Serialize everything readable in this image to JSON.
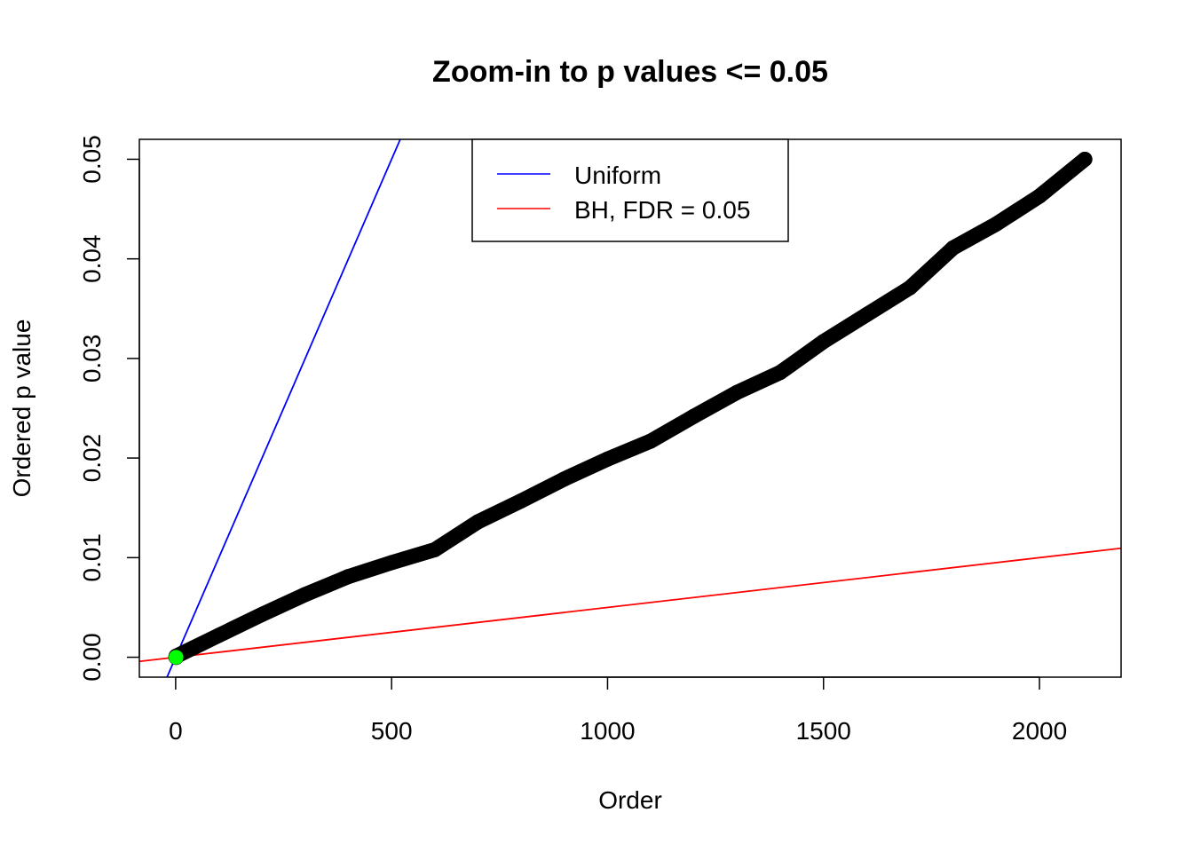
{
  "chart_data": {
    "type": "scatter",
    "title": "Zoom-in to p values <= 0.05",
    "xlabel": "Order",
    "ylabel": "Ordered p value",
    "xlim": [
      -84,
      2189
    ],
    "ylim": [
      -0.002,
      0.052
    ],
    "xticks": [
      0,
      500,
      1000,
      1500,
      2000
    ],
    "xtick_labels": [
      "0",
      "500",
      "1000",
      "1500",
      "2000"
    ],
    "yticks": [
      0,
      0.01,
      0.02,
      0.03,
      0.04,
      0.05
    ],
    "ytick_labels": [
      "0.00",
      "0.01",
      "0.02",
      "0.03",
      "0.04",
      "0.05"
    ],
    "grid": false,
    "legend_position": "top",
    "points": {
      "color": "#000000",
      "x": [
        1,
        100,
        200,
        300,
        400,
        500,
        600,
        700,
        800,
        900,
        1000,
        1100,
        1200,
        1300,
        1400,
        1500,
        1600,
        1700,
        1800,
        1900,
        2000,
        2105
      ],
      "y": [
        0.0001,
        0.0022,
        0.0043,
        0.0063,
        0.0081,
        0.0095,
        0.0108,
        0.0136,
        0.0157,
        0.0179,
        0.0199,
        0.0217,
        0.0242,
        0.0266,
        0.0286,
        0.0317,
        0.0344,
        0.0371,
        0.0411,
        0.0435,
        0.0463,
        0.05
      ]
    },
    "significant_points": {
      "color": "#00ff00",
      "x": [
        1
      ],
      "y": [
        0.0
      ]
    },
    "lines": [
      {
        "name": "Uniform",
        "color": "#0000ff",
        "intercept": 0,
        "slope": 0.0001
      },
      {
        "name": "BH, FDR = 0.05",
        "color": "#ff0000",
        "intercept": 0,
        "slope": 5e-06
      }
    ]
  }
}
